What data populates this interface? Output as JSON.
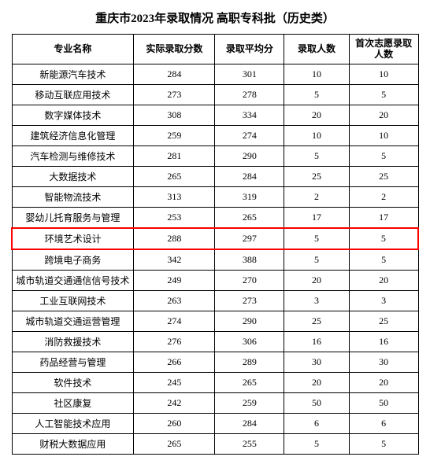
{
  "title": "重庆市2023年录取情况 高职专科批（历史类）",
  "columns": [
    "专业名称",
    "实际录取分数",
    "录取平均分",
    "录取人数",
    "首次志愿录取人数"
  ],
  "highlight_color": "#ff0000",
  "border_color": "#000000",
  "highlighted_row_index": 8,
  "rows": [
    {
      "name": "新能源汽车技术",
      "score": 284,
      "avg": 301,
      "count": 10,
      "first": 10
    },
    {
      "name": "移动互联应用技术",
      "score": 273,
      "avg": 278,
      "count": 5,
      "first": 5
    },
    {
      "name": "数字媒体技术",
      "score": 308,
      "avg": 334,
      "count": 20,
      "first": 20
    },
    {
      "name": "建筑经济信息化管理",
      "score": 259,
      "avg": 274,
      "count": 10,
      "first": 10
    },
    {
      "name": "汽车检测与维修技术",
      "score": 281,
      "avg": 290,
      "count": 5,
      "first": 5
    },
    {
      "name": "大数据技术",
      "score": 265,
      "avg": 284,
      "count": 25,
      "first": 25
    },
    {
      "name": "智能物流技术",
      "score": 313,
      "avg": 319,
      "count": 2,
      "first": 2
    },
    {
      "name": "婴幼儿托育服务与管理",
      "score": 253,
      "avg": 265,
      "count": 17,
      "first": 17
    },
    {
      "name": "环境艺术设计",
      "score": 288,
      "avg": 297,
      "count": 5,
      "first": 5
    },
    {
      "name": "跨境电子商务",
      "score": 342,
      "avg": 388,
      "count": 5,
      "first": 5
    },
    {
      "name": "城市轨道交通通信信号技术",
      "score": 249,
      "avg": 270,
      "count": 20,
      "first": 20
    },
    {
      "name": "工业互联网技术",
      "score": 263,
      "avg": 273,
      "count": 3,
      "first": 3
    },
    {
      "name": "城市轨道交通运营管理",
      "score": 274,
      "avg": 290,
      "count": 25,
      "first": 25
    },
    {
      "name": "消防救援技术",
      "score": 276,
      "avg": 306,
      "count": 16,
      "first": 16
    },
    {
      "name": "药品经营与管理",
      "score": 266,
      "avg": 289,
      "count": 30,
      "first": 30
    },
    {
      "name": "软件技术",
      "score": 245,
      "avg": 265,
      "count": 20,
      "first": 20
    },
    {
      "name": "社区康复",
      "score": 242,
      "avg": 259,
      "count": 50,
      "first": 50
    },
    {
      "name": "人工智能技术应用",
      "score": 260,
      "avg": 284,
      "count": 6,
      "first": 6
    },
    {
      "name": "财税大数据应用",
      "score": 265,
      "avg": 255,
      "count": 5,
      "first": 5
    }
  ]
}
